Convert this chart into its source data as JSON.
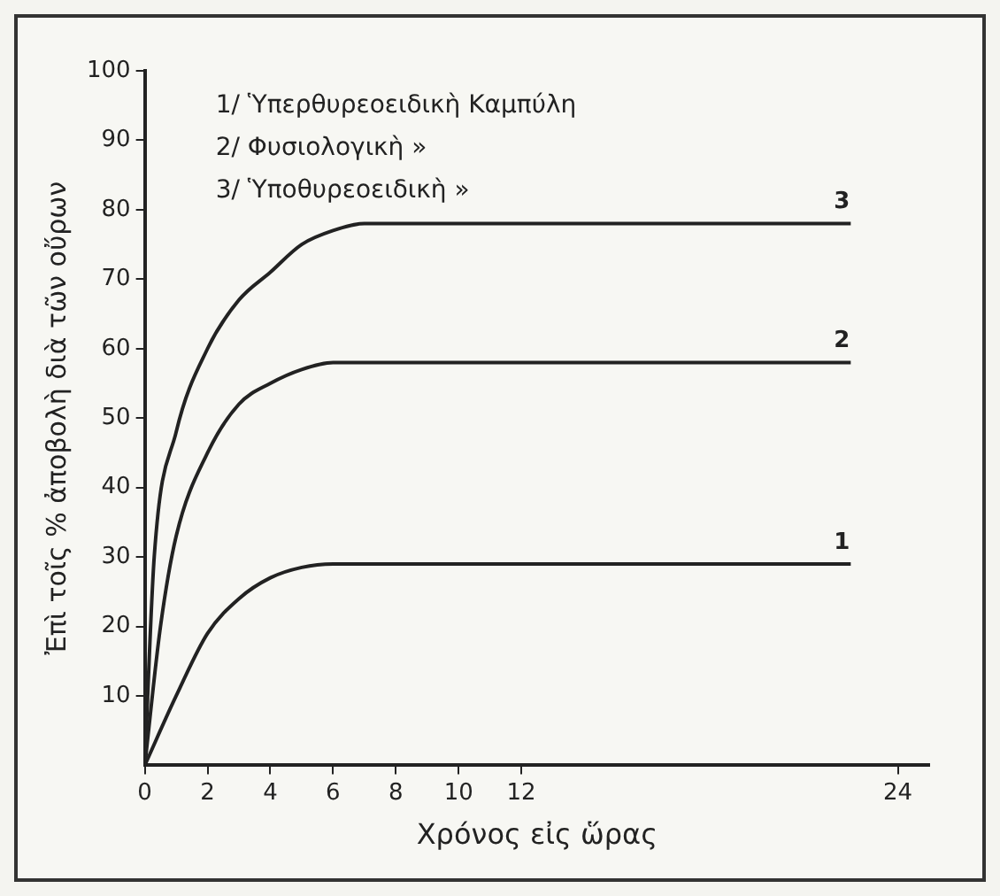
{
  "chart_data": {
    "type": "line",
    "xlabel": "Χρόνος εἰς ὥρας",
    "ylabel": "Ἐπὶ τοῖς % ἀποβολὴ διὰ τῶν οὔρων",
    "annotations": [
      "1/ Ὑπερθυρεοειδικὴ Καμπύλη",
      "2/ Φυσιολογικὴ »",
      "3/ Ὑποθυρεοειδικὴ »"
    ],
    "series": [
      {
        "name": "3",
        "color": "#222222",
        "x": [
          0,
          0.3,
          1,
          2,
          3,
          4,
          5,
          6,
          7,
          22.5
        ],
        "values": [
          0,
          30,
          48,
          60,
          67,
          71,
          75,
          77,
          78,
          78
        ]
      },
      {
        "name": "2",
        "color": "#222222",
        "x": [
          0,
          0.5,
          1,
          2,
          3,
          4,
          5,
          6,
          7,
          22.5
        ],
        "values": [
          0,
          20,
          33,
          45,
          52,
          55,
          57,
          58,
          58,
          58
        ]
      },
      {
        "name": "1",
        "color": "#222222",
        "x": [
          0,
          1,
          2,
          3,
          4,
          5,
          6,
          22.5
        ],
        "values": [
          0,
          10,
          19,
          24,
          27,
          28.5,
          29,
          29
        ]
      }
    ],
    "xlim": [
      0,
      25
    ],
    "xticks": [
      0,
      2,
      4,
      6,
      8,
      10,
      12,
      24
    ],
    "ylim": [
      0,
      100
    ],
    "yticks": [
      10,
      20,
      30,
      40,
      50,
      60,
      70,
      80,
      90,
      100
    ],
    "grid": false,
    "legend": false,
    "marker": "none",
    "line_style": "solid"
  }
}
